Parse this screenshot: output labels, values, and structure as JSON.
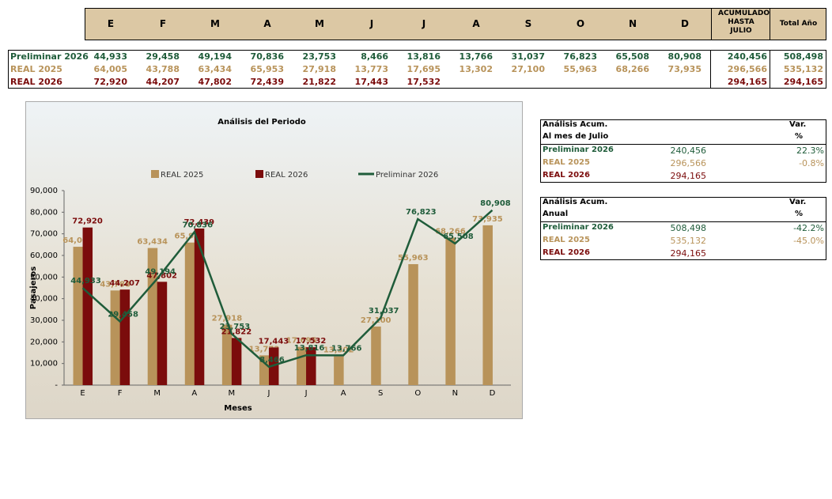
{
  "chart_data": {
    "type": "bar",
    "title": "Análisis del Periodo",
    "x_label": "Meses",
    "y_label": "Pasajeros",
    "categories": [
      "E",
      "F",
      "M",
      "A",
      "M",
      "J",
      "J",
      "A",
      "S",
      "O",
      "N",
      "D"
    ],
    "series": [
      {
        "name": "REAL 2025",
        "type": "bar",
        "color": "#b8935a",
        "values": [
          64005,
          43788,
          63434,
          65953,
          27918,
          13773,
          17695,
          13302,
          27100,
          55963,
          68266,
          73935
        ],
        "value_labels": [
          "64,005",
          "43,788",
          "63,434",
          "65,953",
          "27,918",
          "13,773",
          "17,695",
          "13,302",
          "27,100",
          "55,963",
          "68,266",
          "73,935"
        ]
      },
      {
        "name": "REAL 2026",
        "type": "bar",
        "color": "#7b0c0c",
        "values": [
          72920,
          44207,
          47802,
          72439,
          21822,
          17443,
          17532,
          null,
          null,
          null,
          null,
          null
        ],
        "value_labels": [
          "72,920",
          "44,207",
          "47,802",
          "72,439",
          "21,822",
          "17,443",
          "17,532",
          null,
          null,
          null,
          null,
          null
        ]
      },
      {
        "name": "Preliminar 2026",
        "type": "line",
        "color": "#1f5c3a",
        "values": [
          44933,
          29458,
          49194,
          70836,
          23753,
          8466,
          13816,
          13766,
          31037,
          76823,
          65508,
          80908
        ],
        "value_labels": [
          "44,933",
          "29,458",
          "49,194",
          "70,836",
          "23,753",
          "8,466",
          "13,816",
          "13,766",
          "31,037",
          "76,823",
          "65,508",
          "80,908"
        ]
      }
    ],
    "ylim": [
      0,
      90000
    ],
    "yticks": [
      {
        "value": 0,
        "label": "-"
      },
      {
        "value": 10000,
        "label": "10,000"
      },
      {
        "value": 20000,
        "label": "20,000"
      },
      {
        "value": 30000,
        "label": "30,000"
      },
      {
        "value": 40000,
        "label": "40,000"
      },
      {
        "value": 50000,
        "label": "50,000"
      },
      {
        "value": 60000,
        "label": "60,000"
      },
      {
        "value": 70000,
        "label": "70,000"
      },
      {
        "value": 80000,
        "label": "80,000"
      },
      {
        "value": 90000,
        "label": "90,000"
      }
    ],
    "legend": "top"
  },
  "monthly_table": {
    "extra_headers": [
      "ACUMULADO HASTA JULIO",
      "Total Año"
    ],
    "totals": [
      [
        "240,456",
        "508,498"
      ],
      [
        "296,566",
        "535,132"
      ],
      [
        "294,165",
        "294,165"
      ]
    ]
  },
  "summary_tables": [
    {
      "title": "Análisis  Acum.",
      "subtitle": "Al mes de Julio",
      "var_header": "Var.",
      "var_unit": "%",
      "vars": [
        "22.3%",
        "-0.8%",
        null
      ]
    },
    {
      "title": "Análisis  Acum.",
      "subtitle": "Anual",
      "var_header": "Var.",
      "var_unit": "%",
      "vars": [
        "-42.2%",
        "-45.0%",
        null
      ]
    }
  ]
}
